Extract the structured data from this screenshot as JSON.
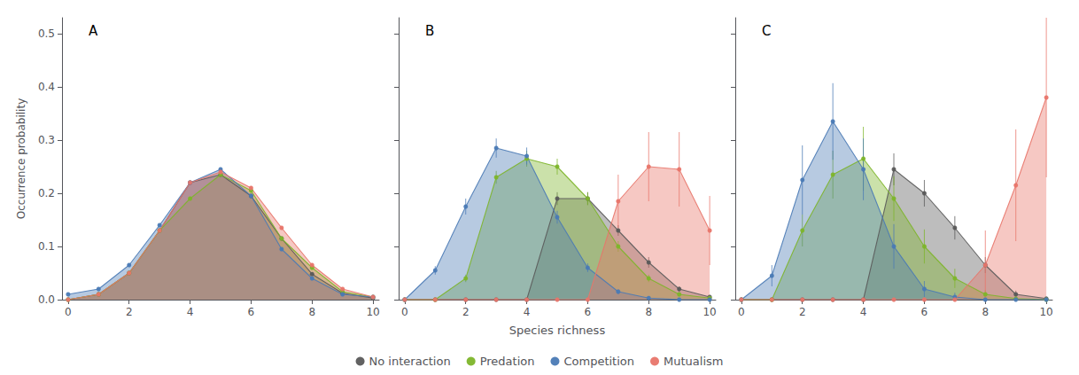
{
  "chart_data": [
    {
      "type": "area",
      "title": "A",
      "ylabel": "Occurrence probability",
      "x": [
        0,
        1,
        2,
        3,
        4,
        5,
        6,
        7,
        8,
        9,
        10
      ],
      "xlim": [
        -0.2,
        10.2
      ],
      "xticks": [
        0,
        2,
        4,
        6,
        8,
        10
      ],
      "ylim": [
        0,
        0.53
      ],
      "yticks": [
        {
          "value": 0,
          "label": "0.0"
        },
        0.1,
        0.2,
        0.3,
        0.4,
        0.5
      ],
      "grid": false,
      "legend": "bottom",
      "marker": "circle",
      "series": [
        {
          "name": "No interaction",
          "color": "#5a5a5a",
          "values": [
            0.0,
            0.01,
            0.05,
            0.13,
            0.22,
            0.235,
            0.195,
            0.115,
            0.048,
            0.012,
            0.003
          ],
          "yerr": [
            0,
            0,
            0,
            0,
            0,
            0,
            0,
            0,
            0,
            0,
            0
          ]
        },
        {
          "name": "Predation",
          "color": "#7db52a",
          "values": [
            0.0,
            0.01,
            0.05,
            0.13,
            0.19,
            0.235,
            0.205,
            0.115,
            0.06,
            0.015,
            0.005
          ],
          "yerr": [
            0,
            0,
            0,
            0,
            0,
            0,
            0,
            0,
            0,
            0,
            0
          ]
        },
        {
          "name": "Competition",
          "color": "#4a7ab5",
          "values": [
            0.01,
            0.02,
            0.065,
            0.14,
            0.22,
            0.245,
            0.195,
            0.095,
            0.04,
            0.01,
            0.005
          ],
          "yerr": [
            0,
            0,
            0,
            0,
            0,
            0,
            0,
            0,
            0,
            0,
            0
          ]
        },
        {
          "name": "Mutualism",
          "color": "#e8756a",
          "values": [
            0.0,
            0.01,
            0.05,
            0.13,
            0.22,
            0.24,
            0.21,
            0.135,
            0.065,
            0.02,
            0.005
          ],
          "yerr": [
            0,
            0,
            0,
            0,
            0,
            0,
            0,
            0,
            0,
            0,
            0
          ]
        }
      ]
    },
    {
      "type": "area",
      "title": "B",
      "xlabel": "Species richness",
      "x": [
        0,
        1,
        2,
        3,
        4,
        5,
        6,
        7,
        8,
        9,
        10
      ],
      "xlim": [
        -0.2,
        10.2
      ],
      "xticks": [
        0,
        2,
        4,
        6,
        8,
        10
      ],
      "ylim": [
        0,
        0.53
      ],
      "yticks": [
        {
          "value": 0,
          "label": "0.0"
        },
        0.1,
        0.2,
        0.3,
        0.4,
        0.5
      ],
      "grid": false,
      "legend": "bottom",
      "marker": "circle",
      "tick_labels": "x",
      "series": [
        {
          "name": "No interaction",
          "color": "#5a5a5a",
          "values": [
            0.0,
            0.0,
            0.0,
            0.0,
            0.0,
            0.19,
            0.19,
            0.13,
            0.07,
            0.02,
            0.005
          ],
          "yerr": [
            0,
            0,
            0,
            0,
            0,
            0.012,
            0.012,
            0.01,
            0.01,
            0.005,
            0.002
          ]
        },
        {
          "name": "Predation",
          "color": "#7db52a",
          "values": [
            0.0,
            0.0,
            0.04,
            0.23,
            0.265,
            0.25,
            0.19,
            0.1,
            0.04,
            0.01,
            0.003
          ],
          "yerr": [
            0,
            0,
            0.007,
            0.012,
            0.015,
            0.015,
            0.012,
            0.01,
            0.007,
            0.004,
            0.002
          ]
        },
        {
          "name": "Competition",
          "color": "#4a7ab5",
          "values": [
            0.0,
            0.055,
            0.175,
            0.285,
            0.27,
            0.155,
            0.06,
            0.015,
            0.003,
            0.0,
            0.0
          ],
          "yerr": [
            0,
            0.008,
            0.015,
            0.018,
            0.016,
            0.012,
            0.008,
            0.005,
            0.002,
            0,
            0
          ]
        },
        {
          "name": "Mutualism",
          "color": "#e8756a",
          "values": [
            0.0,
            0.0,
            0.0,
            0.0,
            0.0,
            0.0,
            0.0,
            0.185,
            0.25,
            0.245,
            0.13
          ],
          "yerr": [
            0,
            0,
            0,
            0,
            0,
            0,
            0,
            0.05,
            0.065,
            0.07,
            0.065
          ]
        }
      ]
    },
    {
      "type": "area",
      "title": "C",
      "x": [
        0,
        1,
        2,
        3,
        4,
        5,
        6,
        7,
        8,
        9,
        10
      ],
      "xlim": [
        -0.2,
        10.2
      ],
      "xticks": [
        0,
        2,
        4,
        6,
        8,
        10
      ],
      "ylim": [
        0,
        0.53
      ],
      "yticks": [
        {
          "value": 0,
          "label": "0.0"
        },
        0.1,
        0.2,
        0.3,
        0.4,
        0.5
      ],
      "grid": false,
      "legend": "bottom",
      "marker": "circle",
      "tick_labels": "x",
      "series": [
        {
          "name": "No interaction",
          "color": "#5a5a5a",
          "values": [
            0.0,
            0.0,
            0.0,
            0.0,
            0.0,
            0.245,
            0.2,
            0.135,
            0.065,
            0.01,
            0.002
          ],
          "yerr": [
            0,
            0,
            0,
            0,
            0,
            0.03,
            0.025,
            0.022,
            0.015,
            0.007,
            0.002
          ]
        },
        {
          "name": "Predation",
          "color": "#7db52a",
          "values": [
            0.0,
            0.0,
            0.13,
            0.235,
            0.265,
            0.19,
            0.1,
            0.04,
            0.01,
            0.002,
            0.0
          ],
          "yerr": [
            0,
            0,
            0.03,
            0.045,
            0.06,
            0.042,
            0.032,
            0.018,
            0.008,
            0.003,
            0
          ]
        },
        {
          "name": "Competition",
          "color": "#4a7ab5",
          "values": [
            0.0,
            0.045,
            0.225,
            0.335,
            0.245,
            0.1,
            0.02,
            0.005,
            0.0,
            0.0,
            0.0
          ],
          "yerr": [
            0,
            0.02,
            0.065,
            0.072,
            0.058,
            0.042,
            0.015,
            0.008,
            0,
            0,
            0
          ]
        },
        {
          "name": "Mutualism",
          "color": "#e8756a",
          "values": [
            0.0,
            0.0,
            0.0,
            0.0,
            0.0,
            0.0,
            0.0,
            0.0,
            0.065,
            0.215,
            0.38
          ],
          "yerr": [
            0,
            0,
            0,
            0,
            0,
            0,
            0,
            0,
            0.065,
            0.105,
            0.15
          ]
        }
      ]
    }
  ]
}
